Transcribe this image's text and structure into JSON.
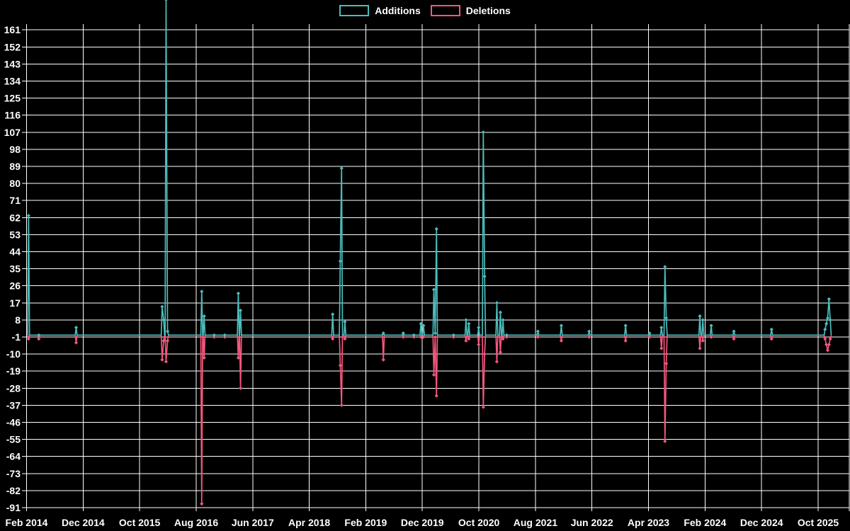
{
  "colors": {
    "background": "#000000",
    "grid": "#ffffff",
    "text": "#ffffff",
    "additions": "#4cbcbc",
    "deletions": "#f4577e"
  },
  "legend": {
    "additions_label": "Additions",
    "deletions_label": "Deletions"
  },
  "chart_data": {
    "type": "line",
    "title": "",
    "legend_position": "top-center",
    "grid": true,
    "x_axis": {
      "tick_labels": [
        "Feb 2014",
        "Dec 2014",
        "Oct 2015",
        "Aug 2016",
        "Jun 2017",
        "Apr 2018",
        "Feb 2019",
        "Dec 2019",
        "Oct 2020",
        "Aug 2021",
        "Jun 2022",
        "Apr 2023",
        "Feb 2024",
        "Dec 2024",
        "Oct 2025"
      ],
      "tick_interval_months": 10
    },
    "y_axis": {
      "min": -91,
      "max": 161,
      "tick_step": 9,
      "tick_labels": [
        161,
        152,
        143,
        134,
        125,
        116,
        107,
        98,
        89,
        80,
        71,
        62,
        53,
        44,
        35,
        26,
        17,
        8,
        -1,
        -10,
        -19,
        -28,
        -37,
        -46,
        -55,
        -64,
        -73,
        -82,
        -91
      ]
    },
    "series": [
      {
        "name": "Additions",
        "color": "#4cbcbc",
        "value_key": "additions"
      },
      {
        "name": "Deletions",
        "color": "#f4577e",
        "value_key": "deletions"
      }
    ],
    "note": "Additions spike in Feb 2016 is clipped above the chart top (exceeds 161); deletions are plotted as negative values; line is flat at 0 between listed events",
    "points": [
      {
        "date": "2014-02-12",
        "additions": 63,
        "deletions": -2
      },
      {
        "date": "2014-04-08",
        "additions": 0,
        "deletions": -2
      },
      {
        "date": "2014-10-26",
        "additions": 4,
        "deletions": -4
      },
      {
        "date": "2016-02-01",
        "additions": 15,
        "deletions": -13
      },
      {
        "date": "2016-02-09",
        "additions": 8,
        "deletions": -3
      },
      {
        "date": "2016-02-22",
        "additions": 177,
        "deletions": -14,
        "clipped": true
      },
      {
        "date": "2016-03-01",
        "additions": 2,
        "deletions": -3
      },
      {
        "date": "2016-09-01",
        "additions": 23,
        "deletions": -89
      },
      {
        "date": "2016-09-14",
        "additions": 10,
        "deletions": -12
      },
      {
        "date": "2016-11-07",
        "additions": 0,
        "deletions": -1
      },
      {
        "date": "2017-01-03",
        "additions": 0,
        "deletions": -1
      },
      {
        "date": "2017-03-17",
        "additions": 22,
        "deletions": -12
      },
      {
        "date": "2017-03-29",
        "additions": 13,
        "deletions": -28
      },
      {
        "date": "2018-08-07",
        "additions": 11,
        "deletions": -2
      },
      {
        "date": "2018-09-17",
        "additions": 39,
        "deletions": -16
      },
      {
        "date": "2018-09-24",
        "additions": 88,
        "deletions": -37
      },
      {
        "date": "2018-10-12",
        "additions": 7,
        "deletions": -2
      },
      {
        "date": "2019-05-07",
        "additions": 1,
        "deletions": -13
      },
      {
        "date": "2019-08-22",
        "additions": 1,
        "deletions": -1
      },
      {
        "date": "2019-10-18",
        "additions": 0,
        "deletions": -1
      },
      {
        "date": "2019-11-25",
        "additions": 6,
        "deletions": -1
      },
      {
        "date": "2019-12-09",
        "additions": 5,
        "deletions": -1
      },
      {
        "date": "2020-02-03",
        "additions": 24,
        "deletions": -21
      },
      {
        "date": "2020-02-10",
        "additions": 1,
        "deletions": -1
      },
      {
        "date": "2020-02-17",
        "additions": 56,
        "deletions": -32
      },
      {
        "date": "2020-05-19",
        "additions": 0,
        "deletions": -1
      },
      {
        "date": "2020-07-25",
        "additions": 8,
        "deletions": -3
      },
      {
        "date": "2020-08-09",
        "additions": 6,
        "deletions": -2
      },
      {
        "date": "2020-10-01",
        "additions": 4,
        "deletions": -5
      },
      {
        "date": "2020-10-26",
        "additions": 107,
        "deletions": -38
      },
      {
        "date": "2020-11-02",
        "additions": 31,
        "deletions": -10
      },
      {
        "date": "2021-01-07",
        "additions": 17,
        "deletions": -14
      },
      {
        "date": "2021-01-26",
        "additions": 12,
        "deletions": -9
      },
      {
        "date": "2021-02-09",
        "additions": 8,
        "deletions": -2
      },
      {
        "date": "2021-03-01",
        "additions": 0,
        "deletions": -1
      },
      {
        "date": "2021-08-16",
        "additions": 2,
        "deletions": -1
      },
      {
        "date": "2021-12-20",
        "additions": 5,
        "deletions": -3
      },
      {
        "date": "2022-05-19",
        "additions": 2,
        "deletions": -1
      },
      {
        "date": "2022-12-01",
        "additions": 5,
        "deletions": -3
      },
      {
        "date": "2023-04-09",
        "additions": 1,
        "deletions": -1
      },
      {
        "date": "2023-06-12",
        "additions": 4,
        "deletions": -7
      },
      {
        "date": "2023-07-01",
        "additions": 36,
        "deletions": -56
      },
      {
        "date": "2023-07-08",
        "additions": 9,
        "deletions": -15
      },
      {
        "date": "2024-01-05",
        "additions": 10,
        "deletions": -7
      },
      {
        "date": "2024-01-21",
        "additions": 8,
        "deletions": -3
      },
      {
        "date": "2024-03-06",
        "additions": 5,
        "deletions": -1
      },
      {
        "date": "2024-07-06",
        "additions": 2,
        "deletions": -2
      },
      {
        "date": "2025-01-25",
        "additions": 3,
        "deletions": -2
      },
      {
        "date": "2025-11-09",
        "additions": 3,
        "deletions": -2
      },
      {
        "date": "2025-11-16",
        "additions": 6,
        "deletions": -5
      },
      {
        "date": "2025-11-23",
        "additions": 9,
        "deletions": -8
      },
      {
        "date": "2025-11-30",
        "additions": 19,
        "deletions": -5
      },
      {
        "date": "2025-12-07",
        "additions": 8,
        "deletions": -2
      }
    ]
  }
}
